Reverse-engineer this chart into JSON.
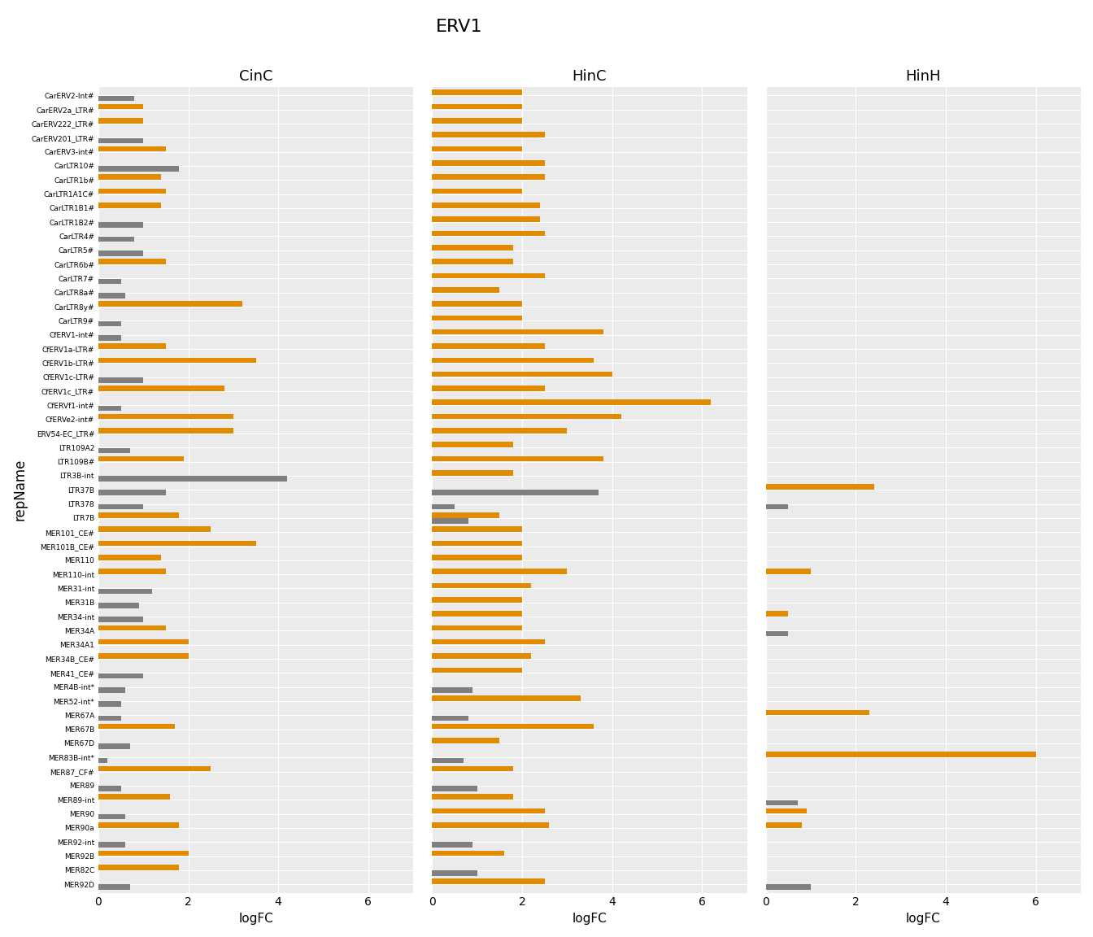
{
  "title": "ERV1",
  "xlabel": "logFC",
  "ylabel": "repName",
  "panels": [
    "CinC",
    "HinC",
    "HinH"
  ],
  "categories": [
    "MER92D",
    "MER82C",
    "MER92B",
    "MER92-int",
    "MER90a",
    "MER90",
    "MER89-int",
    "MER89",
    "MER87_CF#",
    "MER83B-int*",
    "MER67D",
    "MER67B",
    "MER67A",
    "MER52-int*",
    "MER4B-int*",
    "MER41_CE#",
    "MER34B_CE#",
    "MER34A1",
    "MER34A",
    "MER34-int",
    "MER31B",
    "MER31-int",
    "MER110-int",
    "MER110",
    "MER101B_CE#",
    "MER101_CE#",
    "LTR7B",
    "LTR378",
    "LTR37B",
    "LTR3B-int",
    "LTR109B#",
    "LTR109A2",
    "ERV54-EC_LTR#",
    "CfERVe2-int#",
    "CfERVf1-int#",
    "CfERV1c_LTR#",
    "CfERV1c-LTR#",
    "CfERV1b-LTR#",
    "CfERV1a-LTR#",
    "CfERV1-int#",
    "CarLTR9#",
    "CarLTR8y#",
    "CarLTR8a#",
    "CarLTR7#",
    "CarLTR6b#",
    "CarLTR5#",
    "CarLTR4#",
    "CarLTR1B2#",
    "CarLTR1B1#",
    "CarLTR1A1C#",
    "CarLTR1b#",
    "CarLTR10#",
    "CarERV3-int#",
    "CarERV201_LTR#",
    "CarERV222_LTR#",
    "CarERV2a_LTR#",
    "CarERV2-Int#"
  ],
  "CinC_orange": [
    0.0,
    1.8,
    2.0,
    0.0,
    1.8,
    0.0,
    1.6,
    0.0,
    2.5,
    0.0,
    0.0,
    1.7,
    0.0,
    0.0,
    0.0,
    0.0,
    2.0,
    2.0,
    1.5,
    0.0,
    0.0,
    0.0,
    1.5,
    1.4,
    3.5,
    2.5,
    1.8,
    0.0,
    0.0,
    0.0,
    1.9,
    0.0,
    3.0,
    3.0,
    0.0,
    2.8,
    0.0,
    3.5,
    1.5,
    0.0,
    0.0,
    3.2,
    0.0,
    0.0,
    1.5,
    0.0,
    0.0,
    0.0,
    1.4,
    1.5,
    1.4,
    0.0,
    1.5,
    0.0,
    1.0,
    1.0,
    0.0
  ],
  "CinC_gray": [
    0.7,
    0.0,
    0.0,
    0.6,
    0.0,
    0.6,
    0.0,
    0.5,
    0.0,
    0.2,
    0.7,
    0.0,
    0.5,
    0.5,
    0.6,
    1.0,
    0.0,
    0.0,
    0.0,
    1.0,
    0.9,
    1.2,
    0.0,
    0.0,
    0.0,
    0.0,
    0.0,
    1.0,
    1.5,
    4.2,
    0.0,
    0.7,
    0.0,
    0.0,
    0.5,
    0.0,
    1.0,
    0.0,
    0.0,
    0.5,
    0.5,
    0.0,
    0.6,
    0.5,
    0.0,
    1.0,
    0.8,
    1.0,
    0.0,
    0.0,
    0.0,
    1.8,
    0.0,
    1.0,
    0.0,
    0.0,
    0.8
  ],
  "HinC_orange": [
    2.5,
    0.0,
    1.6,
    0.0,
    2.6,
    2.5,
    1.8,
    0.0,
    1.8,
    0.0,
    1.5,
    3.6,
    0.0,
    3.3,
    0.0,
    2.0,
    2.2,
    2.5,
    2.0,
    2.0,
    2.0,
    2.2,
    3.0,
    2.0,
    2.0,
    2.0,
    1.5,
    0.0,
    0.0,
    1.8,
    3.8,
    1.8,
    3.0,
    4.2,
    6.2,
    2.5,
    4.0,
    3.6,
    2.5,
    3.8,
    2.0,
    2.0,
    1.5,
    2.5,
    1.8,
    1.8,
    2.5,
    2.4,
    2.4,
    2.0,
    2.5,
    2.5,
    2.0,
    2.5,
    2.0,
    2.0,
    2.0
  ],
  "HinC_gray": [
    0.0,
    1.0,
    0.0,
    0.9,
    0.0,
    0.0,
    0.0,
    1.0,
    0.0,
    0.7,
    0.0,
    0.0,
    0.8,
    0.0,
    0.9,
    0.0,
    0.0,
    0.0,
    0.0,
    0.0,
    0.0,
    0.0,
    0.0,
    0.0,
    0.0,
    0.0,
    0.8,
    0.5,
    3.7,
    0.0,
    0.0,
    0.0,
    0.0,
    0.0,
    0.0,
    0.0,
    0.0,
    0.0,
    0.0,
    0.0,
    0.0,
    0.0,
    0.0,
    0.0,
    0.0,
    0.0,
    0.0,
    0.0,
    0.0,
    0.0,
    0.0,
    0.0,
    0.0,
    0.0,
    0.0,
    0.0,
    0.0
  ],
  "HinH_orange": [
    0.0,
    0.0,
    0.0,
    0.0,
    0.8,
    0.9,
    0.0,
    0.0,
    0.0,
    6.0,
    0.0,
    0.0,
    2.3,
    0.0,
    0.0,
    0.0,
    0.0,
    0.0,
    0.0,
    0.5,
    0.0,
    0.0,
    1.0,
    0.0,
    0.0,
    0.0,
    0.0,
    0.0,
    2.4,
    0.0,
    0.0,
    0.0,
    0.0,
    0.0,
    0.0,
    0.0,
    0.0,
    0.0,
    0.0,
    0.0,
    0.0,
    0.0,
    0.0,
    0.0,
    0.0,
    0.0,
    0.0,
    0.0,
    0.0,
    0.0,
    0.0,
    0.0,
    0.0,
    0.0,
    0.0,
    0.0,
    0.0
  ],
  "HinH_gray": [
    1.0,
    0.0,
    0.0,
    0.0,
    0.0,
    0.0,
    0.7,
    0.0,
    0.0,
    0.0,
    0.0,
    0.0,
    0.0,
    0.0,
    0.0,
    0.0,
    0.0,
    0.0,
    0.5,
    0.0,
    0.0,
    0.0,
    0.0,
    0.0,
    0.0,
    0.0,
    0.0,
    0.5,
    0.0,
    0.0,
    0.0,
    0.0,
    0.0,
    0.0,
    0.0,
    0.0,
    0.0,
    0.0,
    0.0,
    0.0,
    0.0,
    0.0,
    0.0,
    0.0,
    0.0,
    0.0,
    0.0,
    0.0,
    0.0,
    0.0,
    0.0,
    0.0,
    0.0,
    0.0,
    0.0,
    0.0,
    0.0
  ],
  "orange_color": "#E08B00",
  "gray_color": "#7F7F7F",
  "panel_bg_color": "#EBEBEB"
}
